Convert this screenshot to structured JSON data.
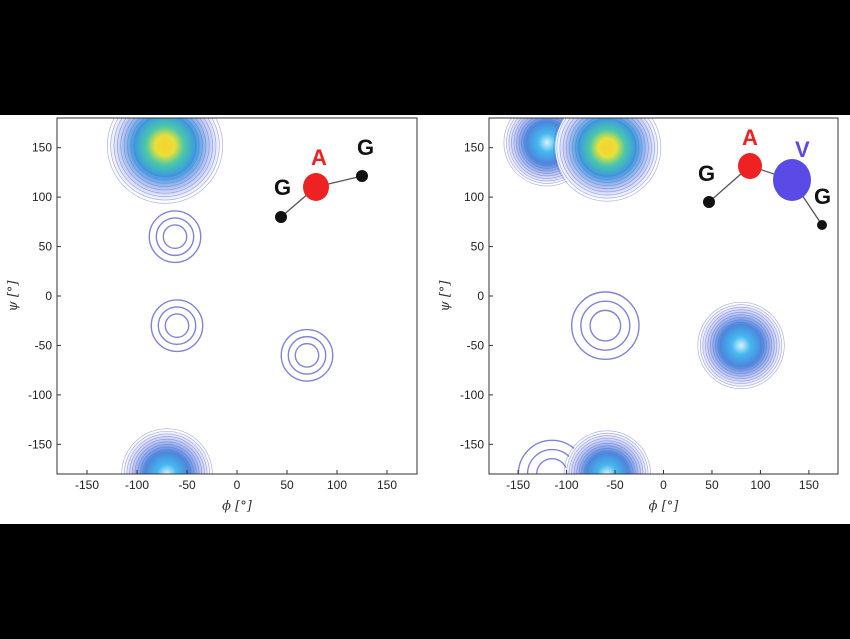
{
  "chart_data": [
    {
      "type": "contour",
      "xlabel": "ϕ [°]",
      "ylabel": "ψ [°]",
      "xlim": [
        -180,
        180
      ],
      "ylim": [
        -180,
        180
      ],
      "xticks": [
        -150,
        -100,
        -50,
        0,
        50,
        100,
        150
      ],
      "yticks": [
        -150,
        -100,
        -50,
        0,
        50,
        100,
        150
      ],
      "peptide": [
        "G",
        "A",
        "G"
      ],
      "peaks": [
        {
          "phi": -72,
          "psi": 152,
          "intensity": "high"
        },
        {
          "phi": -62,
          "psi": 60,
          "intensity": "low"
        },
        {
          "phi": -60,
          "psi": -30,
          "intensity": "low"
        },
        {
          "phi": 70,
          "psi": -60,
          "intensity": "low"
        },
        {
          "phi": -70,
          "psi": -180,
          "intensity": "medium"
        }
      ]
    },
    {
      "type": "contour",
      "xlabel": "ϕ [°]",
      "ylabel": "ψ [°]",
      "xlim": [
        -180,
        180
      ],
      "ylim": [
        -180,
        180
      ],
      "xticks": [
        -150,
        -100,
        -50,
        0,
        50,
        100,
        150
      ],
      "yticks": [
        -150,
        -100,
        -50,
        0,
        50,
        100,
        150
      ],
      "peptide": [
        "G",
        "A",
        "V",
        "G"
      ],
      "peaks": [
        {
          "phi": -120,
          "psi": 155,
          "intensity": "medium"
        },
        {
          "phi": -58,
          "psi": 150,
          "intensity": "high"
        },
        {
          "phi": -60,
          "psi": -30,
          "intensity": "low"
        },
        {
          "phi": 80,
          "psi": -50,
          "intensity": "medium"
        },
        {
          "phi": -115,
          "psi": -180,
          "intensity": "low"
        },
        {
          "phi": -58,
          "psi": -180,
          "intensity": "medium"
        }
      ]
    }
  ],
  "colors": {
    "contour_line": "#6a6fd0",
    "glycine": "#111111",
    "alanine": "#ee2222",
    "valine": "#5a4ae6",
    "bond": "#555555"
  }
}
